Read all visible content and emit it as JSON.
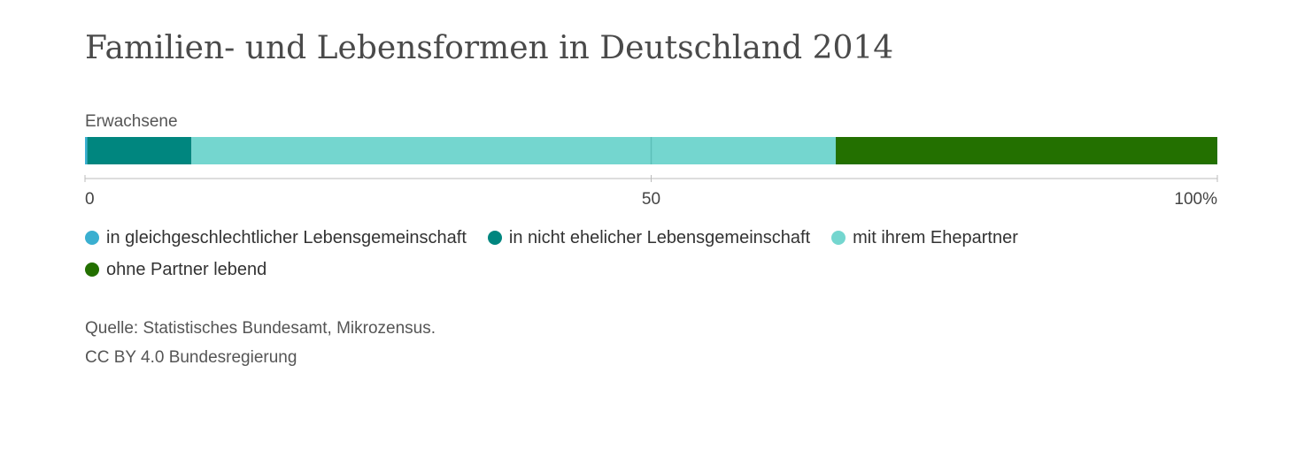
{
  "title": "Familien- und Lebensformen in Deutschland 2014",
  "source": {
    "line1": "Quelle: Statistisches Bundesamt, Mikrozensus.",
    "line2": "CC BY 4.0 Bundesregierung"
  },
  "chart_data": {
    "type": "bar",
    "orientation": "horizontal",
    "stacked": true,
    "categories": [
      "Erwachsene"
    ],
    "series": [
      {
        "name": "in gleichgeschlechtlicher Lebensgemeinschaft",
        "values": [
          0.2
        ],
        "color": "#3aafd0"
      },
      {
        "name": "in nicht ehelicher Lebensgemeinschaft",
        "values": [
          9.2
        ],
        "color": "#00867f"
      },
      {
        "name": "mit ihrem Ehepartner",
        "values": [
          56.9
        ],
        "color": "#74d6cf"
      },
      {
        "name": "ohne Partner lebend",
        "values": [
          33.7
        ],
        "color": "#237000"
      }
    ],
    "xlim": [
      0,
      100
    ],
    "x_ticks": [
      {
        "value": 0,
        "label": "0"
      },
      {
        "value": 50,
        "label": "50"
      },
      {
        "value": 100,
        "label": "100%"
      }
    ],
    "legend_position": "bottom"
  }
}
